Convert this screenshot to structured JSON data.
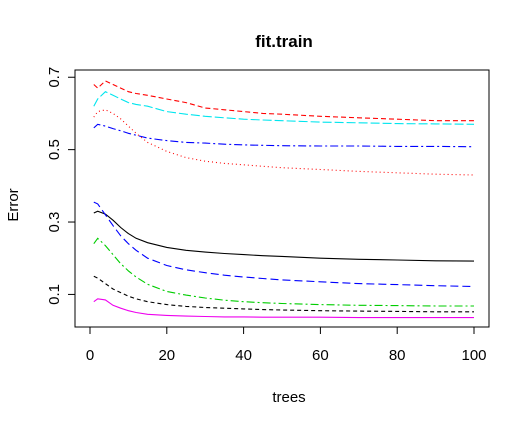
{
  "chart_data": {
    "type": "line",
    "title": "fit.train",
    "xlabel": "trees",
    "ylabel": "Error",
    "xlim": [
      0,
      100
    ],
    "ylim": [
      0.01,
      0.72
    ],
    "xticks": [
      0,
      20,
      40,
      60,
      80,
      100
    ],
    "xtick_labels": [
      "0",
      "20",
      "40",
      "60",
      "80",
      "100"
    ],
    "yticks": [
      0.1,
      0.3,
      0.5,
      0.7
    ],
    "ytick_labels": [
      "0.1",
      "0.3",
      "0.5",
      "0.7"
    ],
    "grid": false,
    "legend": "none",
    "series": [
      {
        "color": "#ff0000",
        "dash": "5,3",
        "x": [
          1,
          2,
          4,
          6,
          8,
          10,
          12,
          15,
          20,
          25,
          30,
          35,
          40,
          45,
          50,
          60,
          70,
          80,
          90,
          100
        ],
        "y": [
          0.68,
          0.67,
          0.69,
          0.68,
          0.67,
          0.66,
          0.655,
          0.65,
          0.64,
          0.63,
          0.615,
          0.61,
          0.605,
          0.6,
          0.598,
          0.592,
          0.588,
          0.584,
          0.58,
          0.58
        ]
      },
      {
        "color": "#00e5ee",
        "dash": "9,3",
        "x": [
          1,
          2,
          4,
          6,
          8,
          10,
          12,
          15,
          20,
          25,
          30,
          35,
          40,
          45,
          50,
          60,
          70,
          80,
          90,
          100
        ],
        "y": [
          0.62,
          0.64,
          0.66,
          0.65,
          0.64,
          0.63,
          0.625,
          0.62,
          0.605,
          0.598,
          0.592,
          0.588,
          0.584,
          0.582,
          0.58,
          0.576,
          0.574,
          0.572,
          0.571,
          0.57
        ]
      },
      {
        "color": "#0000ff",
        "dash": "8,3,2,3",
        "x": [
          1,
          2,
          4,
          6,
          8,
          10,
          12,
          15,
          20,
          25,
          30,
          35,
          40,
          45,
          50,
          60,
          70,
          80,
          90,
          100
        ],
        "y": [
          0.56,
          0.57,
          0.565,
          0.558,
          0.552,
          0.545,
          0.54,
          0.532,
          0.525,
          0.52,
          0.518,
          0.515,
          0.513,
          0.512,
          0.511,
          0.51,
          0.51,
          0.509,
          0.509,
          0.508
        ]
      },
      {
        "color": "#ff0000",
        "dash": "1,3",
        "x": [
          1,
          2,
          4,
          6,
          8,
          10,
          12,
          15,
          20,
          25,
          30,
          35,
          40,
          45,
          50,
          60,
          70,
          80,
          90,
          100
        ],
        "y": [
          0.59,
          0.605,
          0.61,
          0.6,
          0.585,
          0.565,
          0.545,
          0.52,
          0.495,
          0.478,
          0.468,
          0.462,
          0.458,
          0.454,
          0.45,
          0.445,
          0.44,
          0.436,
          0.432,
          0.43
        ]
      },
      {
        "color": "#000000",
        "dash": "",
        "x": [
          1,
          2,
          4,
          6,
          8,
          10,
          12,
          15,
          20,
          25,
          30,
          35,
          40,
          45,
          50,
          60,
          70,
          80,
          90,
          100
        ],
        "y": [
          0.325,
          0.33,
          0.322,
          0.305,
          0.285,
          0.268,
          0.255,
          0.243,
          0.23,
          0.222,
          0.217,
          0.213,
          0.21,
          0.207,
          0.205,
          0.2,
          0.197,
          0.195,
          0.193,
          0.192
        ]
      },
      {
        "color": "#0000ff",
        "dash": "8,4",
        "x": [
          1,
          2,
          4,
          6,
          8,
          10,
          12,
          15,
          20,
          25,
          30,
          35,
          40,
          45,
          50,
          60,
          70,
          80,
          90,
          100
        ],
        "y": [
          0.355,
          0.35,
          0.32,
          0.29,
          0.262,
          0.24,
          0.222,
          0.2,
          0.18,
          0.168,
          0.16,
          0.153,
          0.148,
          0.144,
          0.14,
          0.135,
          0.13,
          0.127,
          0.124,
          0.122
        ]
      },
      {
        "color": "#00cd00",
        "dash": "8,3,2,3",
        "x": [
          1,
          2,
          4,
          6,
          8,
          10,
          12,
          15,
          20,
          25,
          30,
          35,
          40,
          45,
          50,
          60,
          70,
          80,
          90,
          100
        ],
        "y": [
          0.24,
          0.255,
          0.235,
          0.21,
          0.185,
          0.165,
          0.148,
          0.128,
          0.108,
          0.098,
          0.09,
          0.084,
          0.08,
          0.077,
          0.075,
          0.072,
          0.07,
          0.069,
          0.068,
          0.068
        ]
      },
      {
        "color": "#000000",
        "dash": "4,3",
        "x": [
          1,
          2,
          4,
          6,
          8,
          10,
          12,
          15,
          20,
          25,
          30,
          35,
          40,
          45,
          50,
          60,
          70,
          80,
          90,
          100
        ],
        "y": [
          0.15,
          0.145,
          0.13,
          0.115,
          0.105,
          0.095,
          0.088,
          0.08,
          0.072,
          0.067,
          0.064,
          0.062,
          0.06,
          0.058,
          0.057,
          0.055,
          0.054,
          0.053,
          0.052,
          0.052
        ]
      },
      {
        "color": "#ee00ee",
        "dash": "",
        "x": [
          1,
          2,
          4,
          6,
          8,
          10,
          12,
          15,
          20,
          25,
          30,
          35,
          40,
          45,
          50,
          60,
          70,
          80,
          90,
          100
        ],
        "y": [
          0.08,
          0.088,
          0.085,
          0.07,
          0.062,
          0.055,
          0.05,
          0.045,
          0.042,
          0.04,
          0.039,
          0.038,
          0.038,
          0.037,
          0.037,
          0.037,
          0.036,
          0.036,
          0.036,
          0.036
        ]
      }
    ]
  }
}
